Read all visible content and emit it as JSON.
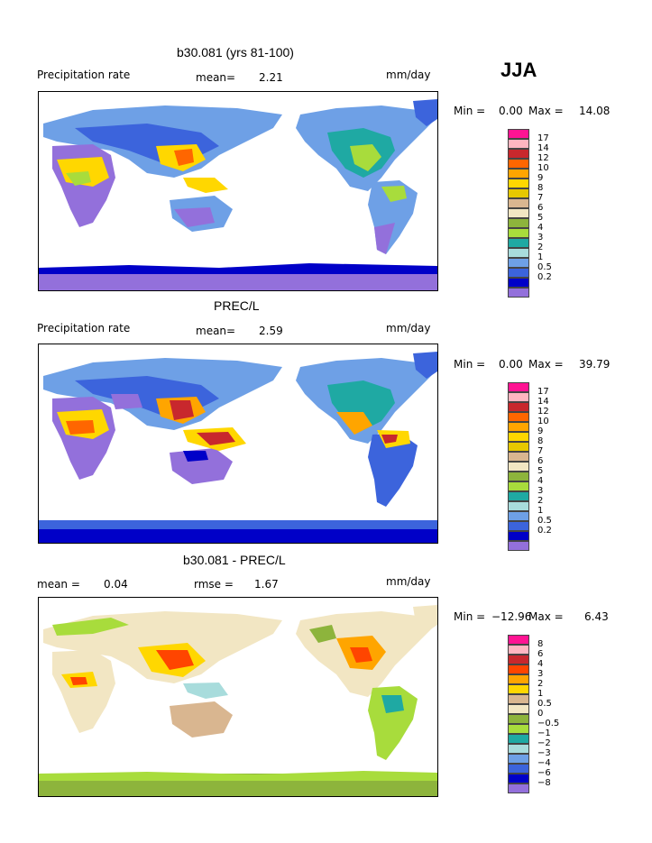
{
  "season": "JJA",
  "panels": [
    {
      "title": "b30.081 (yrs 81-100)",
      "left_label": "Precipitation rate",
      "mid_label": "mean=",
      "mid_value": "2.21",
      "right_label": "",
      "units": "mm/day",
      "min_text": "Min =",
      "min_value": "0.00",
      "max_text": "Max =",
      "max_value": "14.08",
      "colors": [
        "#ff1493",
        "#ffb6c1",
        "#c8282d",
        "#ff6600",
        "#ffa500",
        "#ffd700",
        "#e6c800",
        "#d9b690",
        "#f2e6c3",
        "#8db43c",
        "#a8dc3c",
        "#1fa9a3",
        "#a8dcdc",
        "#6ea0e6",
        "#3c64dc",
        "#0000c8",
        "#9370db"
      ],
      "ticks": [
        "17",
        "14",
        "12",
        "10",
        "9",
        "8",
        "7",
        "6",
        "5",
        "4",
        "3",
        "2",
        "1",
        "0.5",
        "0.2"
      ]
    },
    {
      "title": "PREC/L",
      "left_label": "Precipitation rate",
      "mid_label": "mean=",
      "mid_value": "2.59",
      "right_label": "",
      "units": "mm/day",
      "min_text": "Min =",
      "min_value": "0.00",
      "max_text": "Max =",
      "max_value": "39.79",
      "colors": [
        "#ff1493",
        "#ffb6c1",
        "#c8282d",
        "#ff6600",
        "#ffa500",
        "#ffd700",
        "#e6c800",
        "#d9b690",
        "#f2e6c3",
        "#8db43c",
        "#a8dc3c",
        "#1fa9a3",
        "#a8dcdc",
        "#6ea0e6",
        "#3c64dc",
        "#0000c8",
        "#9370db"
      ],
      "ticks": [
        "17",
        "14",
        "12",
        "10",
        "9",
        "8",
        "7",
        "6",
        "5",
        "4",
        "3",
        "2",
        "1",
        "0.5",
        "0.2"
      ]
    },
    {
      "title": "b30.081 - PREC/L",
      "left_label": "mean =",
      "mid_label": "0.04",
      "mid_value": "",
      "right_label": "rmse =",
      "right_value": "1.67",
      "units": "mm/day",
      "min_text": "Min =",
      "min_value": "−12.96",
      "max_text": "Max =",
      "max_value": "6.43",
      "colors": [
        "#ff1493",
        "#ffb6c1",
        "#c8282d",
        "#ff4500",
        "#ffa500",
        "#ffd700",
        "#d9b690",
        "#f2e6c3",
        "#8db43c",
        "#a8dc3c",
        "#1fa9a3",
        "#a8dcdc",
        "#6ea0e6",
        "#3c64dc",
        "#0000c8",
        "#9370db"
      ],
      "ticks": [
        "8",
        "6",
        "4",
        "3",
        "2",
        "1",
        "0.5",
        "0",
        "−0.5",
        "−1",
        "−2",
        "−3",
        "−4",
        "−6",
        "−8"
      ]
    }
  ]
}
